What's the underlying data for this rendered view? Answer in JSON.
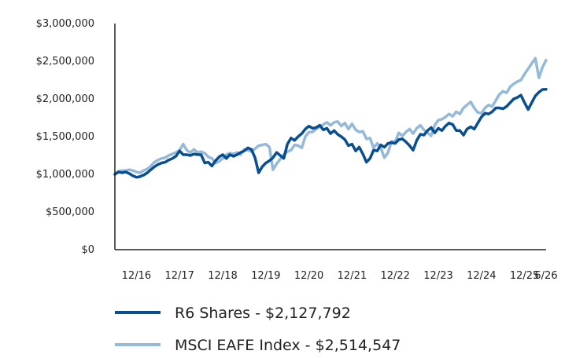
{
  "chart_data": {
    "type": "line",
    "title": "",
    "xlabel": "",
    "ylabel": "",
    "ylim": [
      0,
      3000000
    ],
    "y_ticks": [
      {
        "value": 0,
        "label": "$0"
      },
      {
        "value": 500000,
        "label": "$500,000"
      },
      {
        "value": 1000000,
        "label": "$1,000,000"
      },
      {
        "value": 1500000,
        "label": "$1,500,000"
      },
      {
        "value": 2000000,
        "label": "$2,000,000"
      },
      {
        "value": 2500000,
        "label": "$2,500,000"
      },
      {
        "value": 3000000,
        "label": "$3,000,000"
      }
    ],
    "xlim": [
      "2016-06",
      "2026-06"
    ],
    "x_ticks": [
      {
        "value": "2016-12",
        "label": "12/16"
      },
      {
        "value": "2017-12",
        "label": "12/17"
      },
      {
        "value": "2018-12",
        "label": "12/18"
      },
      {
        "value": "2019-12",
        "label": "12/19"
      },
      {
        "value": "2020-12",
        "label": "12/20"
      },
      {
        "value": "2021-12",
        "label": "12/21"
      },
      {
        "value": "2022-12",
        "label": "12/22"
      },
      {
        "value": "2023-12",
        "label": "12/23"
      },
      {
        "value": "2024-12",
        "label": "12/24"
      },
      {
        "value": "2025-12",
        "label": "12/25"
      },
      {
        "value": "2026-06",
        "label": "6/26"
      }
    ],
    "grid": false,
    "legend_position": "bottom",
    "series": [
      {
        "name": "R6 Shares - $2,127,792",
        "color": "#0a4e92",
        "points": [
          [
            "2016-06",
            1000000
          ],
          [
            "2016-07",
            1030000
          ],
          [
            "2016-08",
            1020000
          ],
          [
            "2016-09",
            1030000
          ],
          [
            "2016-10",
            1010000
          ],
          [
            "2016-11",
            980000
          ],
          [
            "2016-12",
            960000
          ],
          [
            "2017-01",
            970000
          ],
          [
            "2017-02",
            990000
          ],
          [
            "2017-03",
            1020000
          ],
          [
            "2017-04",
            1060000
          ],
          [
            "2017-05",
            1100000
          ],
          [
            "2017-06",
            1130000
          ],
          [
            "2017-07",
            1150000
          ],
          [
            "2017-08",
            1160000
          ],
          [
            "2017-09",
            1190000
          ],
          [
            "2017-10",
            1210000
          ],
          [
            "2017-11",
            1240000
          ],
          [
            "2017-12",
            1310000
          ],
          [
            "2018-01",
            1260000
          ],
          [
            "2018-02",
            1260000
          ],
          [
            "2018-03",
            1250000
          ],
          [
            "2018-04",
            1270000
          ],
          [
            "2018-05",
            1260000
          ],
          [
            "2018-06",
            1260000
          ],
          [
            "2018-07",
            1150000
          ],
          [
            "2018-08",
            1160000
          ],
          [
            "2018-09",
            1110000
          ],
          [
            "2018-10",
            1180000
          ],
          [
            "2018-11",
            1230000
          ],
          [
            "2018-12",
            1260000
          ],
          [
            "2019-01",
            1210000
          ],
          [
            "2019-02",
            1260000
          ],
          [
            "2019-03",
            1240000
          ],
          [
            "2019-04",
            1260000
          ],
          [
            "2019-05",
            1290000
          ],
          [
            "2019-06",
            1310000
          ],
          [
            "2019-07",
            1350000
          ],
          [
            "2019-08",
            1330000
          ],
          [
            "2019-09",
            1220000
          ],
          [
            "2019-10",
            1020000
          ],
          [
            "2019-11",
            1100000
          ],
          [
            "2019-12",
            1150000
          ],
          [
            "2020-01",
            1180000
          ],
          [
            "2020-02",
            1220000
          ],
          [
            "2020-03",
            1290000
          ],
          [
            "2020-04",
            1250000
          ],
          [
            "2020-05",
            1210000
          ],
          [
            "2020-06",
            1400000
          ],
          [
            "2020-07",
            1480000
          ],
          [
            "2020-08",
            1450000
          ],
          [
            "2020-09",
            1500000
          ],
          [
            "2020-10",
            1540000
          ],
          [
            "2020-11",
            1600000
          ],
          [
            "2020-12",
            1640000
          ],
          [
            "2021-01",
            1610000
          ],
          [
            "2021-02",
            1620000
          ],
          [
            "2021-03",
            1650000
          ],
          [
            "2021-04",
            1590000
          ],
          [
            "2021-05",
            1610000
          ],
          [
            "2021-06",
            1540000
          ],
          [
            "2021-07",
            1580000
          ],
          [
            "2021-08",
            1530000
          ],
          [
            "2021-09",
            1500000
          ],
          [
            "2021-10",
            1460000
          ],
          [
            "2021-11",
            1380000
          ],
          [
            "2021-12",
            1400000
          ],
          [
            "2022-01",
            1310000
          ],
          [
            "2022-02",
            1360000
          ],
          [
            "2022-03",
            1270000
          ],
          [
            "2022-04",
            1160000
          ],
          [
            "2022-05",
            1210000
          ],
          [
            "2022-06",
            1320000
          ],
          [
            "2022-07",
            1310000
          ],
          [
            "2022-08",
            1390000
          ],
          [
            "2022-09",
            1360000
          ],
          [
            "2022-10",
            1410000
          ],
          [
            "2022-11",
            1420000
          ],
          [
            "2022-12",
            1410000
          ],
          [
            "2023-01",
            1460000
          ],
          [
            "2023-02",
            1470000
          ],
          [
            "2023-03",
            1430000
          ],
          [
            "2023-04",
            1380000
          ],
          [
            "2023-05",
            1320000
          ],
          [
            "2023-06",
            1450000
          ],
          [
            "2023-07",
            1530000
          ],
          [
            "2023-08",
            1520000
          ],
          [
            "2023-09",
            1580000
          ],
          [
            "2023-10",
            1620000
          ],
          [
            "2023-11",
            1550000
          ],
          [
            "2023-12",
            1610000
          ],
          [
            "2024-01",
            1580000
          ],
          [
            "2024-02",
            1640000
          ],
          [
            "2024-03",
            1680000
          ],
          [
            "2024-04",
            1660000
          ],
          [
            "2024-05",
            1580000
          ],
          [
            "2024-06",
            1580000
          ],
          [
            "2024-07",
            1520000
          ],
          [
            "2024-08",
            1600000
          ],
          [
            "2024-09",
            1630000
          ],
          [
            "2024-10",
            1600000
          ],
          [
            "2024-11",
            1680000
          ],
          [
            "2024-12",
            1760000
          ],
          [
            "2025-01",
            1810000
          ],
          [
            "2025-02",
            1800000
          ],
          [
            "2025-03",
            1830000
          ],
          [
            "2025-04",
            1880000
          ],
          [
            "2025-05",
            1880000
          ],
          [
            "2025-06",
            1870000
          ],
          [
            "2025-07",
            1900000
          ],
          [
            "2025-08",
            1950000
          ],
          [
            "2025-09",
            2000000
          ],
          [
            "2025-10",
            2020000
          ],
          [
            "2025-11",
            2050000
          ],
          [
            "2025-12",
            1950000
          ],
          [
            "2026-01",
            1860000
          ],
          [
            "2026-02",
            1950000
          ],
          [
            "2026-03",
            2040000
          ],
          [
            "2026-04",
            2090000
          ],
          [
            "2026-05",
            2125000
          ],
          [
            "2026-06",
            2127792
          ]
        ]
      },
      {
        "name": "MSCI EAFE Index - $2,514,547",
        "color": "#95b9d9",
        "points": [
          [
            "2016-06",
            1000000
          ],
          [
            "2016-07",
            1040000
          ],
          [
            "2016-08",
            1050000
          ],
          [
            "2016-09",
            1050000
          ],
          [
            "2016-10",
            1060000
          ],
          [
            "2016-11",
            1050000
          ],
          [
            "2016-12",
            1030000
          ],
          [
            "2017-01",
            1020000
          ],
          [
            "2017-02",
            1050000
          ],
          [
            "2017-03",
            1070000
          ],
          [
            "2017-04",
            1110000
          ],
          [
            "2017-05",
            1160000
          ],
          [
            "2017-06",
            1190000
          ],
          [
            "2017-07",
            1210000
          ],
          [
            "2017-08",
            1220000
          ],
          [
            "2017-09",
            1250000
          ],
          [
            "2017-10",
            1270000
          ],
          [
            "2017-11",
            1290000
          ],
          [
            "2017-12",
            1320000
          ],
          [
            "2018-01",
            1400000
          ],
          [
            "2018-02",
            1320000
          ],
          [
            "2018-03",
            1290000
          ],
          [
            "2018-04",
            1330000
          ],
          [
            "2018-05",
            1290000
          ],
          [
            "2018-06",
            1300000
          ],
          [
            "2018-07",
            1280000
          ],
          [
            "2018-08",
            1230000
          ],
          [
            "2018-09",
            1210000
          ],
          [
            "2018-10",
            1150000
          ],
          [
            "2018-11",
            1170000
          ],
          [
            "2018-12",
            1210000
          ],
          [
            "2019-01",
            1260000
          ],
          [
            "2019-02",
            1280000
          ],
          [
            "2019-03",
            1270000
          ],
          [
            "2019-04",
            1290000
          ],
          [
            "2019-05",
            1260000
          ],
          [
            "2019-06",
            1330000
          ],
          [
            "2019-07",
            1320000
          ],
          [
            "2019-08",
            1300000
          ],
          [
            "2019-09",
            1340000
          ],
          [
            "2019-10",
            1380000
          ],
          [
            "2019-11",
            1390000
          ],
          [
            "2019-12",
            1400000
          ],
          [
            "2020-01",
            1360000
          ],
          [
            "2020-02",
            1060000
          ],
          [
            "2020-03",
            1140000
          ],
          [
            "2020-04",
            1200000
          ],
          [
            "2020-05",
            1260000
          ],
          [
            "2020-06",
            1300000
          ],
          [
            "2020-07",
            1320000
          ],
          [
            "2020-08",
            1390000
          ],
          [
            "2020-09",
            1380000
          ],
          [
            "2020-10",
            1350000
          ],
          [
            "2020-11",
            1500000
          ],
          [
            "2020-12",
            1560000
          ],
          [
            "2021-01",
            1560000
          ],
          [
            "2021-02",
            1600000
          ],
          [
            "2021-03",
            1630000
          ],
          [
            "2021-04",
            1660000
          ],
          [
            "2021-05",
            1690000
          ],
          [
            "2021-06",
            1650000
          ],
          [
            "2021-07",
            1690000
          ],
          [
            "2021-08",
            1700000
          ],
          [
            "2021-09",
            1640000
          ],
          [
            "2021-10",
            1680000
          ],
          [
            "2021-11",
            1600000
          ],
          [
            "2021-12",
            1670000
          ],
          [
            "2022-01",
            1590000
          ],
          [
            "2022-02",
            1560000
          ],
          [
            "2022-03",
            1570000
          ],
          [
            "2022-04",
            1470000
          ],
          [
            "2022-05",
            1480000
          ],
          [
            "2022-06",
            1350000
          ],
          [
            "2022-07",
            1410000
          ],
          [
            "2022-08",
            1350000
          ],
          [
            "2022-09",
            1220000
          ],
          [
            "2022-10",
            1290000
          ],
          [
            "2022-11",
            1440000
          ],
          [
            "2022-12",
            1430000
          ],
          [
            "2023-01",
            1550000
          ],
          [
            "2023-02",
            1510000
          ],
          [
            "2023-03",
            1560000
          ],
          [
            "2023-04",
            1600000
          ],
          [
            "2023-05",
            1540000
          ],
          [
            "2023-06",
            1610000
          ],
          [
            "2023-07",
            1650000
          ],
          [
            "2023-08",
            1590000
          ],
          [
            "2023-09",
            1550000
          ],
          [
            "2023-10",
            1510000
          ],
          [
            "2023-11",
            1650000
          ],
          [
            "2023-12",
            1720000
          ],
          [
            "2024-01",
            1730000
          ],
          [
            "2024-02",
            1760000
          ],
          [
            "2024-03",
            1800000
          ],
          [
            "2024-04",
            1770000
          ],
          [
            "2024-05",
            1830000
          ],
          [
            "2024-06",
            1800000
          ],
          [
            "2024-07",
            1880000
          ],
          [
            "2024-08",
            1920000
          ],
          [
            "2024-09",
            1960000
          ],
          [
            "2024-10",
            1880000
          ],
          [
            "2024-11",
            1820000
          ],
          [
            "2024-12",
            1810000
          ],
          [
            "2025-01",
            1880000
          ],
          [
            "2025-02",
            1920000
          ],
          [
            "2025-03",
            1900000
          ],
          [
            "2025-04",
            1980000
          ],
          [
            "2025-05",
            2060000
          ],
          [
            "2025-06",
            2100000
          ],
          [
            "2025-07",
            2080000
          ],
          [
            "2025-08",
            2160000
          ],
          [
            "2025-09",
            2200000
          ],
          [
            "2025-10",
            2230000
          ],
          [
            "2025-11",
            2250000
          ],
          [
            "2025-12",
            2330000
          ],
          [
            "2026-01",
            2400000
          ],
          [
            "2026-02",
            2470000
          ],
          [
            "2026-03",
            2540000
          ],
          [
            "2026-04",
            2280000
          ],
          [
            "2026-05",
            2420000
          ],
          [
            "2026-06",
            2514547
          ]
        ]
      }
    ]
  }
}
